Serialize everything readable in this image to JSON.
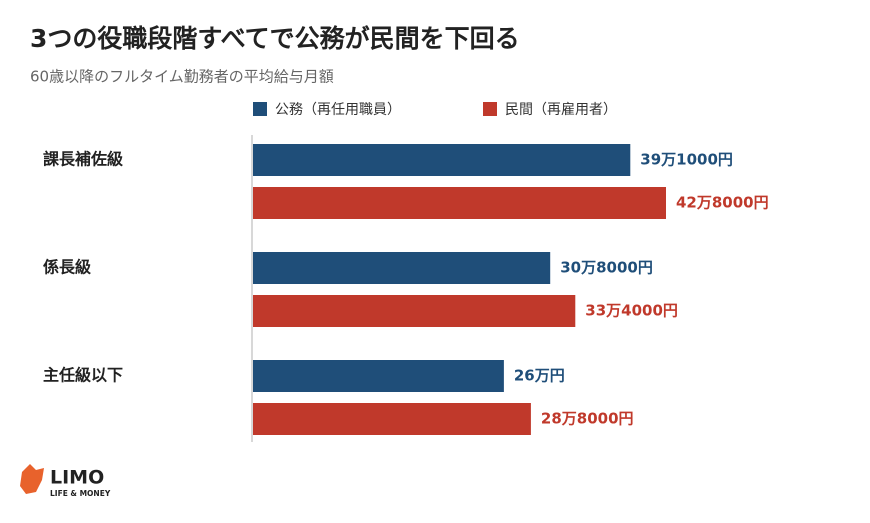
{
  "chart_data": {
    "type": "hbar",
    "title": "3つの役職段階すべてで公務が民間を下回る",
    "subtitle": "60歳以降のフルタイム勤務者の平均給与月額",
    "categories": [
      "課長補佐級",
      "係長級",
      "主任級以下"
    ],
    "series": [
      {
        "name": "公務（再任用職員）",
        "color": "#1f4e79",
        "values": [
          391000,
          308000,
          260000
        ],
        "value_labels": [
          "39万1000円",
          "30万8000円",
          "26万円"
        ]
      },
      {
        "name": "民間（再雇用者）",
        "color": "#c0392b",
        "values": [
          428000,
          334000,
          288000
        ],
        "value_labels": [
          "42万8000円",
          "33万4000円",
          "28万8000円"
        ]
      }
    ]
  },
  "logo": {
    "name": "LIMO",
    "tagline": "LIFE & MONEY"
  }
}
